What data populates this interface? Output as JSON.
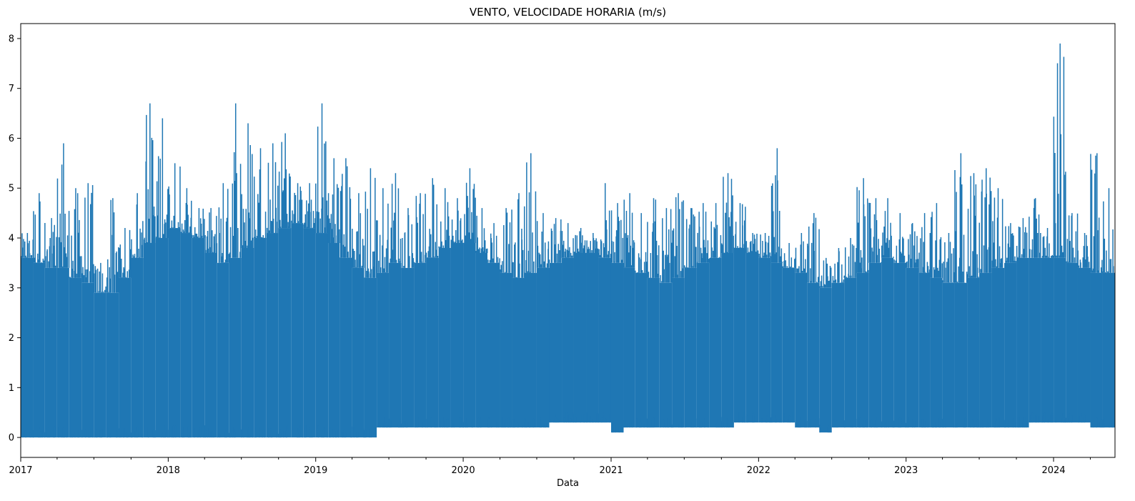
{
  "chart_data": {
    "type": "line",
    "title": "VENTO, VELOCIDADE HORARIA (m/s)",
    "xlabel": "Data",
    "ylabel": "",
    "xlim": [
      "2017-01-01",
      "2024-06-01"
    ],
    "ylim": [
      -0.4,
      8.3
    ],
    "x_ticks": [
      "2017",
      "2018",
      "2019",
      "2020",
      "2021",
      "2022",
      "2023",
      "2024"
    ],
    "y_ticks": [
      0,
      1,
      2,
      3,
      4,
      5,
      6,
      7,
      8
    ],
    "grid": false,
    "color": "#1f77b4",
    "series": [
      {
        "x": [
          "2017-01",
          "2017-02",
          "2017-03",
          "2017-04",
          "2017-05",
          "2017-06",
          "2017-07",
          "2017-08",
          "2017-09",
          "2017-10",
          "2017-11",
          "2017-12",
          "2018-01",
          "2018-02",
          "2018-03",
          "2018-04",
          "2018-05",
          "2018-06",
          "2018-07",
          "2018-08",
          "2018-09",
          "2018-10",
          "2018-11",
          "2018-12",
          "2019-01",
          "2019-02",
          "2019-03",
          "2019-04",
          "2019-05",
          "2019-06",
          "2019-07",
          "2019-08",
          "2019-09",
          "2019-10",
          "2019-11",
          "2019-12",
          "2020-01",
          "2020-02",
          "2020-03",
          "2020-04",
          "2020-05",
          "2020-06",
          "2020-07",
          "2020-08",
          "2020-09",
          "2020-10",
          "2020-11",
          "2020-12",
          "2021-01",
          "2021-02",
          "2021-03",
          "2021-04",
          "2021-05",
          "2021-06",
          "2021-07",
          "2021-08",
          "2021-09",
          "2021-10",
          "2021-11",
          "2021-12",
          "2022-01",
          "2022-02",
          "2022-03",
          "2022-04",
          "2022-05",
          "2022-06",
          "2022-07",
          "2022-08",
          "2022-09",
          "2022-10",
          "2022-11",
          "2022-12",
          "2023-01",
          "2023-02",
          "2023-03",
          "2023-04",
          "2023-05",
          "2023-06",
          "2023-07",
          "2023-08",
          "2023-09",
          "2023-10",
          "2023-11",
          "2023-12",
          "2024-01",
          "2024-02",
          "2024-03",
          "2024-04",
          "2024-05"
        ],
        "min": [
          0.0,
          0.0,
          0.0,
          0.0,
          0.0,
          0.0,
          0.0,
          0.0,
          0.0,
          0.0,
          0.0,
          0.0,
          0.0,
          0.0,
          0.0,
          0.0,
          0.0,
          0.0,
          0.0,
          0.0,
          0.0,
          0.0,
          0.0,
          0.0,
          0.0,
          0.0,
          0.0,
          0.0,
          0.0,
          0.2,
          0.2,
          0.2,
          0.2,
          0.2,
          0.2,
          0.2,
          0.2,
          0.2,
          0.2,
          0.2,
          0.2,
          0.2,
          0.2,
          0.3,
          0.3,
          0.3,
          0.3,
          0.3,
          0.1,
          0.2,
          0.2,
          0.2,
          0.2,
          0.2,
          0.2,
          0.2,
          0.2,
          0.2,
          0.3,
          0.3,
          0.3,
          0.3,
          0.3,
          0.2,
          0.2,
          0.1,
          0.2,
          0.2,
          0.2,
          0.2,
          0.2,
          0.2,
          0.2,
          0.2,
          0.2,
          0.2,
          0.2,
          0.2,
          0.2,
          0.2,
          0.2,
          0.2,
          0.3,
          0.3,
          0.3,
          0.3,
          0.3,
          0.2,
          0.2
        ],
        "max": [
          4.1,
          4.9,
          4.4,
          5.9,
          5.0,
          5.1,
          3.5,
          4.8,
          4.2,
          4.9,
          6.7,
          6.4,
          5.5,
          5.0,
          4.6,
          4.6,
          5.1,
          6.7,
          6.3,
          5.8,
          5.9,
          6.1,
          5.1,
          5.1,
          6.7,
          5.6,
          5.6,
          4.9,
          5.4,
          5.0,
          5.3,
          4.6,
          4.9,
          5.2,
          5.0,
          4.8,
          5.4,
          4.6,
          4.3,
          4.6,
          4.9,
          5.7,
          4.5,
          4.4,
          4.3,
          4.2,
          4.1,
          5.1,
          4.7,
          4.9,
          4.5,
          4.8,
          4.6,
          4.9,
          4.6,
          4.7,
          4.7,
          5.3,
          4.7,
          4.1,
          4.1,
          5.8,
          3.9,
          4.1,
          4.5,
          3.6,
          3.8,
          4.0,
          5.2,
          4.8,
          4.8,
          4.5,
          4.3,
          4.5,
          4.7,
          4.1,
          5.7,
          5.3,
          5.4,
          5.0,
          4.3,
          4.4,
          4.8,
          4.2,
          7.9,
          4.5,
          4.1,
          5.7,
          5.0
        ],
        "typical_high": [
          3.6,
          3.5,
          3.4,
          3.4,
          3.2,
          3.1,
          2.9,
          2.9,
          3.2,
          3.6,
          3.9,
          4.0,
          4.2,
          4.1,
          4.0,
          3.7,
          3.5,
          3.6,
          3.8,
          4.0,
          4.1,
          4.2,
          4.3,
          4.2,
          4.1,
          3.9,
          3.6,
          3.4,
          3.2,
          3.3,
          3.5,
          3.4,
          3.5,
          3.6,
          3.8,
          3.9,
          3.9,
          3.7,
          3.5,
          3.3,
          3.2,
          3.3,
          3.4,
          3.5,
          3.6,
          3.7,
          3.7,
          3.6,
          3.5,
          3.4,
          3.3,
          3.2,
          3.1,
          3.2,
          3.4,
          3.5,
          3.6,
          3.7,
          3.8,
          3.7,
          3.6,
          3.5,
          3.4,
          3.3,
          3.1,
          3.0,
          3.1,
          3.2,
          3.3,
          3.5,
          3.6,
          3.5,
          3.4,
          3.3,
          3.2,
          3.1,
          3.1,
          3.2,
          3.3,
          3.4,
          3.5,
          3.6,
          3.6,
          3.6,
          3.6,
          3.5,
          3.4,
          3.3,
          3.3
        ]
      }
    ]
  }
}
